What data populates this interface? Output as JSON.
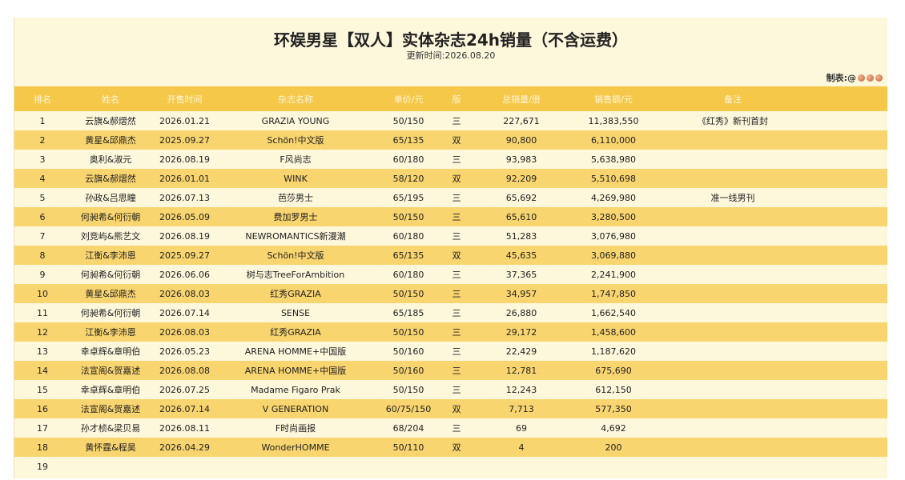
{
  "title": "环娱男星【双人】实体杂志24h销量（不含运费）",
  "updated": "更新时间:2026.08.20",
  "maker": "制表:@",
  "headers": {
    "rank": "排名",
    "name": "姓名",
    "date": "开售时间",
    "magazine": "杂志名称",
    "price": "单价/元",
    "version": "版",
    "qty": "总销量/册",
    "amount": "销售额/元",
    "note": "备注"
  },
  "rows": [
    {
      "rank": "1",
      "name": "云旗&郝熠然",
      "date": "2026.01.21",
      "magazine": "GRAZIA YOUNG",
      "price": "50/150",
      "version": "三",
      "qty": "227,671",
      "amount": "11,383,550",
      "note": "《红秀》新刊首封"
    },
    {
      "rank": "2",
      "name": "黄星&邱鼎杰",
      "date": "2025.09.27",
      "magazine": "Schön!中文版",
      "price": "65/135",
      "version": "双",
      "qty": "90,800",
      "amount": "6,110,000",
      "note": ""
    },
    {
      "rank": "3",
      "name": "奥利&淑元",
      "date": "2026.08.19",
      "magazine": "F风尚志",
      "price": "60/180",
      "version": "三",
      "qty": "93,983",
      "amount": "5,638,980",
      "note": ""
    },
    {
      "rank": "4",
      "name": "云旗&郝熠然",
      "date": "2026.01.01",
      "magazine": "WINK",
      "price": "58/120",
      "version": "双",
      "qty": "92,209",
      "amount": "5,510,698",
      "note": ""
    },
    {
      "rank": "5",
      "name": "孙政&吕思瞳",
      "date": "2026.07.13",
      "magazine": "芭莎男士",
      "price": "65/195",
      "version": "三",
      "qty": "65,692",
      "amount": "4,269,980",
      "note": "准一线男刊"
    },
    {
      "rank": "6",
      "name": "何昶希&何衍朝",
      "date": "2026.05.09",
      "magazine": "费加罗男士",
      "price": "50/150",
      "version": "三",
      "qty": "65,610",
      "amount": "3,280,500",
      "note": ""
    },
    {
      "rank": "7",
      "name": "刘竞屿&熊艺文",
      "date": "2026.08.19",
      "magazine": "NEWROMANTICS新漫潮",
      "price": "60/180",
      "version": "三",
      "qty": "51,283",
      "amount": "3,076,980",
      "note": ""
    },
    {
      "rank": "8",
      "name": "江衡&李沛恩",
      "date": "2025.09.27",
      "magazine": "Schön!中文版",
      "price": "65/135",
      "version": "双",
      "qty": "45,635",
      "amount": "3,069,880",
      "note": ""
    },
    {
      "rank": "9",
      "name": "何昶希&何衍朝",
      "date": "2026.06.06",
      "magazine": "树与志TreeForAmbition",
      "price": "60/180",
      "version": "三",
      "qty": "37,365",
      "amount": "2,241,900",
      "note": ""
    },
    {
      "rank": "10",
      "name": "黄星&邱鼎杰",
      "date": "2026.08.03",
      "magazine": "红秀GRAZIA",
      "price": "50/150",
      "version": "三",
      "qty": "34,957",
      "amount": "1,747,850",
      "note": ""
    },
    {
      "rank": "11",
      "name": "何昶希&何衍朝",
      "date": "2026.07.14",
      "magazine": "SENSE",
      "price": "65/185",
      "version": "三",
      "qty": "26,880",
      "amount": "1,662,540",
      "note": ""
    },
    {
      "rank": "12",
      "name": "江衡&李沛恩",
      "date": "2026.08.03",
      "magazine": "红秀GRAZIA",
      "price": "50/150",
      "version": "三",
      "qty": "29,172",
      "amount": "1,458,600",
      "note": ""
    },
    {
      "rank": "13",
      "name": "幸卓辉&章明伯",
      "date": "2026.05.23",
      "magazine": "ARENA HOMME+中国版",
      "price": "50/160",
      "version": "三",
      "qty": "22,429",
      "amount": "1,187,620",
      "note": ""
    },
    {
      "rank": "14",
      "name": "法宣阁&贺嘉述",
      "date": "2026.08.08",
      "magazine": "ARENA HOMME+中国版",
      "price": "50/160",
      "version": "三",
      "qty": "12,781",
      "amount": "675,690",
      "note": ""
    },
    {
      "rank": "15",
      "name": "幸卓辉&章明伯",
      "date": "2026.07.25",
      "magazine": "Madame Figaro Prak",
      "price": "50/150",
      "version": "三",
      "qty": "12,243",
      "amount": "612,150",
      "note": ""
    },
    {
      "rank": "16",
      "name": "法宣阁&贺嘉述",
      "date": "2026.07.14",
      "magazine": "V GENERATION",
      "price": "60/75/150",
      "version": "双",
      "qty": "7,713",
      "amount": "577,350",
      "note": ""
    },
    {
      "rank": "17",
      "name": "孙才桢&梁贝易",
      "date": "2026.08.11",
      "magazine": "F时尚画报",
      "price": "68/204",
      "version": "三",
      "qty": "69",
      "amount": "4,692",
      "note": ""
    },
    {
      "rank": "18",
      "name": "黄怀霆&程昊",
      "date": "2026.04.29",
      "magazine": "WonderHOMME",
      "price": "50/110",
      "version": "双",
      "qty": "4",
      "amount": "200",
      "note": ""
    },
    {
      "rank": "19",
      "name": "",
      "date": "",
      "magazine": "",
      "price": "",
      "version": "",
      "qty": "",
      "amount": "",
      "note": ""
    }
  ]
}
